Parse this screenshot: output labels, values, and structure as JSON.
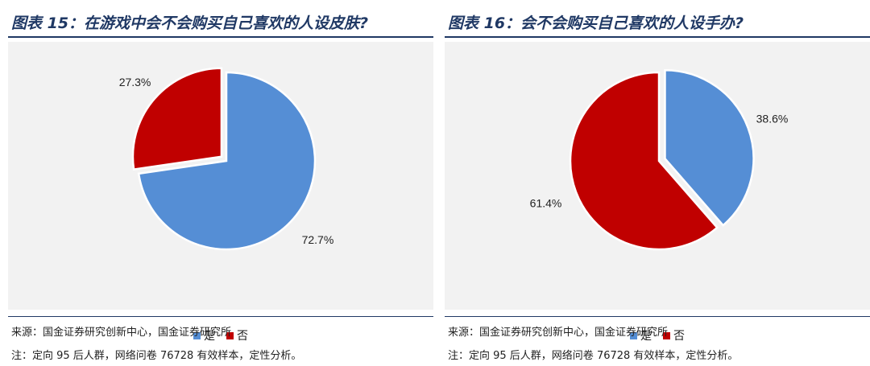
{
  "chart_data": [
    {
      "type": "pie",
      "title": "图表 15：在游戏中会不会购买自己喜欢的人设皮肤?",
      "categories": [
        "是",
        "否"
      ],
      "values": [
        72.7,
        27.3
      ],
      "value_labels": [
        "72.7%",
        "27.3%"
      ],
      "colors": [
        "#558ed5",
        "#c00000"
      ],
      "exploded": "否",
      "legend": "bottom-center",
      "source": "来源：国金证券研究创新中心，国金证券研究所",
      "note": "注：定向 95 后人群，网络问卷 76728 有效样本，定性分析。"
    },
    {
      "type": "pie",
      "title": "图表 16：会不会购买自己喜欢的人设手办?",
      "categories": [
        "是",
        "否"
      ],
      "values": [
        38.6,
        61.4
      ],
      "value_labels": [
        "38.6%",
        "61.4%"
      ],
      "colors": [
        "#558ed5",
        "#c00000"
      ],
      "exploded": "是",
      "legend": "bottom-center",
      "source": "来源：国金证券研究创新中心，国金证券研究所",
      "note": "注：定向 95 后人群，网络问卷 76728 有效样本，定性分析。"
    }
  ]
}
